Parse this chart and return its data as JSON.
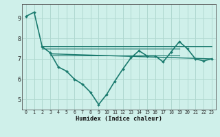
{
  "title": "",
  "xlabel": "Humidex (Indice chaleur)",
  "xlim": [
    -0.5,
    23.5
  ],
  "ylim": [
    4.5,
    9.7
  ],
  "yticks": [
    5,
    6,
    7,
    8,
    9
  ],
  "xticks": [
    0,
    1,
    2,
    3,
    4,
    5,
    6,
    7,
    8,
    9,
    10,
    11,
    12,
    13,
    14,
    15,
    16,
    17,
    18,
    19,
    20,
    21,
    22,
    23
  ],
  "bg_color": "#cff0ea",
  "grid_color": "#b0d8d0",
  "line_color": "#1a7a6e",
  "main_series": {
    "x": [
      0,
      1,
      2,
      3,
      4,
      5,
      6,
      7,
      8,
      9,
      10,
      11,
      12,
      13,
      14,
      15,
      16,
      17,
      18,
      19,
      20,
      21,
      22,
      23
    ],
    "y": [
      9.1,
      9.3,
      7.6,
      7.3,
      6.6,
      6.4,
      6.0,
      5.75,
      5.35,
      4.75,
      5.25,
      5.9,
      6.5,
      7.05,
      7.4,
      7.15,
      7.15,
      6.85,
      7.35,
      7.85,
      7.5,
      7.0,
      6.9,
      7.0
    ]
  },
  "flat_lines": [
    {
      "x": [
        2,
        23
      ],
      "y": [
        7.6,
        7.6
      ],
      "lw": 1.3
    },
    {
      "x": [
        2,
        19
      ],
      "y": [
        7.52,
        7.52
      ],
      "lw": 1.0
    },
    {
      "x": [
        3,
        23
      ],
      "y": [
        7.25,
        7.0
      ],
      "lw": 1.0
    },
    {
      "x": [
        3,
        19
      ],
      "y": [
        7.18,
        7.18
      ],
      "lw": 0.8
    }
  ]
}
